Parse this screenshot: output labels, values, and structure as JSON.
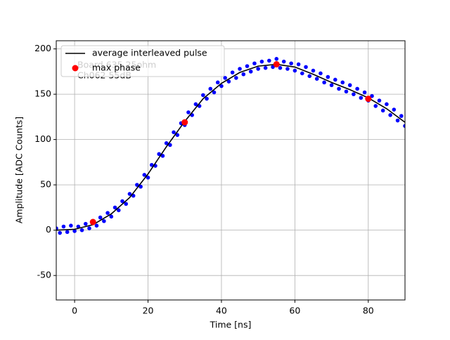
{
  "chart_data": {
    "type": "line",
    "xlabel": "Time [ns]",
    "ylabel": "Amplitude [ADC Counts]",
    "xlim": [
      -5,
      90
    ],
    "ylim": [
      -77,
      209
    ],
    "xticks": [
      0,
      20,
      40,
      60,
      80
    ],
    "yticks": [
      -50,
      0,
      50,
      100,
      150,
      200
    ],
    "grid": true,
    "legend": "upper left",
    "annotations": [
      "Board 635 25ohm",
      "Ch062 55dB"
    ],
    "points": {
      "color": "#0000ff",
      "x": [
        -5,
        -4,
        -3,
        -2,
        -1,
        0,
        1,
        2,
        3,
        4,
        5,
        6,
        7,
        8,
        9,
        10,
        11,
        12,
        13,
        14,
        15,
        16,
        17,
        18,
        19,
        20,
        21,
        22,
        23,
        24,
        25,
        26,
        27,
        28,
        29,
        30,
        31,
        32,
        33,
        34,
        35,
        36,
        37,
        38,
        39,
        40,
        41,
        42,
        43,
        44,
        45,
        46,
        47,
        48,
        49,
        50,
        51,
        52,
        53,
        54,
        55,
        56,
        57,
        58,
        59,
        60,
        61,
        62,
        63,
        64,
        65,
        66,
        67,
        68,
        69,
        70,
        71,
        72,
        73,
        74,
        75,
        76,
        77,
        78,
        79,
        80,
        81,
        82,
        83,
        84,
        85,
        86,
        87,
        88,
        89,
        90
      ],
      "values": [
        2,
        -3,
        4,
        -2,
        5,
        -1,
        4,
        0,
        7,
        2,
        9,
        5,
        14,
        10,
        19,
        15,
        25,
        22,
        32,
        29,
        40,
        38,
        50,
        48,
        61,
        58,
        72,
        71,
        84,
        82,
        96,
        94,
        108,
        105,
        118,
        116,
        130,
        127,
        139,
        137,
        149,
        145,
        156,
        152,
        163,
        159,
        168,
        164,
        174,
        168,
        178,
        172,
        181,
        175,
        184,
        178,
        186,
        179,
        187,
        180,
        189,
        179,
        186,
        178,
        184,
        176,
        183,
        173,
        180,
        170,
        176,
        167,
        173,
        163,
        169,
        160,
        166,
        156,
        163,
        153,
        160,
        150,
        156,
        146,
        152,
        143,
        148,
        137,
        143,
        132,
        139,
        127,
        133,
        121,
        126,
        115
      ]
    },
    "series": [
      {
        "name": "average interleaved pulse",
        "color": "#000000",
        "x": [
          -5,
          0,
          5,
          10,
          15,
          20,
          25,
          30,
          35,
          40,
          45,
          50,
          55,
          60,
          65,
          70,
          75,
          80,
          85,
          90
        ],
        "values": [
          0,
          1,
          6,
          18,
          36,
          62,
          92,
          120,
          145,
          162,
          174,
          181,
          183,
          180,
          172,
          163,
          155,
          146,
          134,
          119
        ]
      },
      {
        "name": "max phase",
        "color": "#ff0000",
        "x": [
          5,
          30,
          55,
          80
        ],
        "values": [
          9,
          119,
          183,
          145
        ]
      }
    ]
  }
}
